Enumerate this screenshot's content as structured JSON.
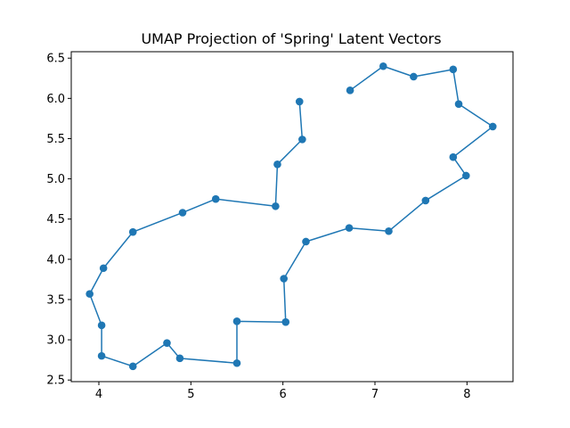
{
  "chart_data": {
    "type": "line",
    "title": "UMAP Projection of 'Spring' Latent Vectors",
    "xlabel": "",
    "ylabel": "",
    "xlim": [
      3.7,
      8.5
    ],
    "ylim": [
      2.48,
      6.58
    ],
    "xticks": [
      "4",
      "5",
      "6",
      "7",
      "8"
    ],
    "yticks": [
      "2.5",
      "3.0",
      "3.5",
      "4.0",
      "4.5",
      "5.0",
      "5.5",
      "6.0",
      "6.5"
    ],
    "grid": false,
    "marker": "circle",
    "color": "#1f77b4",
    "series": [
      {
        "points": [
          [
            6.18,
            5.96
          ],
          [
            6.21,
            5.49
          ],
          [
            5.94,
            5.18
          ],
          [
            5.92,
            4.66
          ],
          [
            5.27,
            4.75
          ],
          [
            4.91,
            4.58
          ],
          [
            4.37,
            4.34
          ],
          [
            4.05,
            3.89
          ],
          [
            3.9,
            3.57
          ],
          [
            4.03,
            3.18
          ],
          [
            4.03,
            2.8
          ],
          [
            4.37,
            2.67
          ],
          [
            4.74,
            2.96
          ],
          [
            4.88,
            2.77
          ],
          [
            5.5,
            2.71
          ],
          [
            5.5,
            3.23
          ],
          [
            6.03,
            3.22
          ],
          [
            6.01,
            3.76
          ],
          [
            6.25,
            4.22
          ],
          [
            6.72,
            4.39
          ],
          [
            7.15,
            4.35
          ],
          [
            7.55,
            4.73
          ],
          [
            7.99,
            5.04
          ],
          [
            7.85,
            5.27
          ],
          [
            8.28,
            5.65
          ],
          [
            7.91,
            5.93
          ],
          [
            7.85,
            6.36
          ],
          [
            7.42,
            6.27
          ],
          [
            7.09,
            6.4
          ],
          [
            6.73,
            6.1
          ]
        ]
      }
    ]
  }
}
